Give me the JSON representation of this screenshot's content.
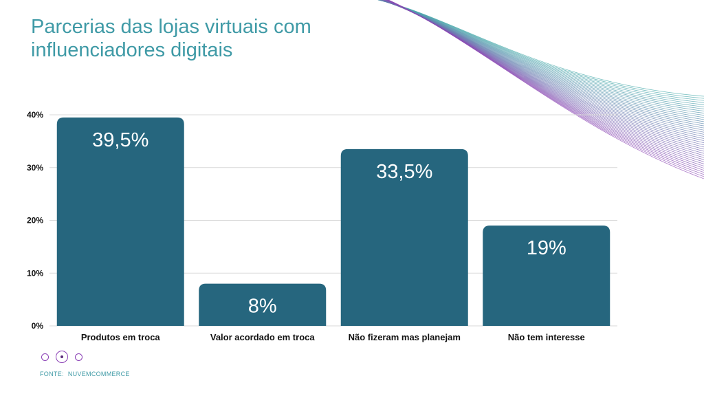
{
  "title": {
    "line1": "Parcerias das lojas virtuais com",
    "line2": "influenciadores digitais"
  },
  "colors": {
    "bar": "#26667e",
    "title": "#3f9aa6",
    "grid": "#d9d9d9",
    "dots": "#8a3fb5"
  },
  "chart_data": {
    "type": "bar",
    "title": "Parcerias das lojas virtuais com influenciadores digitais",
    "categories": [
      "Produtos em troca",
      "Valor acordado em troca",
      "Não fizeram mas planejam",
      "Não tem interesse"
    ],
    "values": [
      39.5,
      8,
      33.5,
      19
    ],
    "data_labels": [
      "39,5%",
      "8%",
      "33,5%",
      "19%"
    ],
    "yticks": [
      "0%",
      "10%",
      "20%",
      "30%",
      "40%"
    ],
    "ylim": [
      0,
      40
    ],
    "grid": true,
    "xlabel": "",
    "ylabel": ""
  },
  "pagination": {
    "count": 3,
    "active": 1
  },
  "source": {
    "label": "FONTE:",
    "name": "NUVEMCOMMERCE"
  }
}
